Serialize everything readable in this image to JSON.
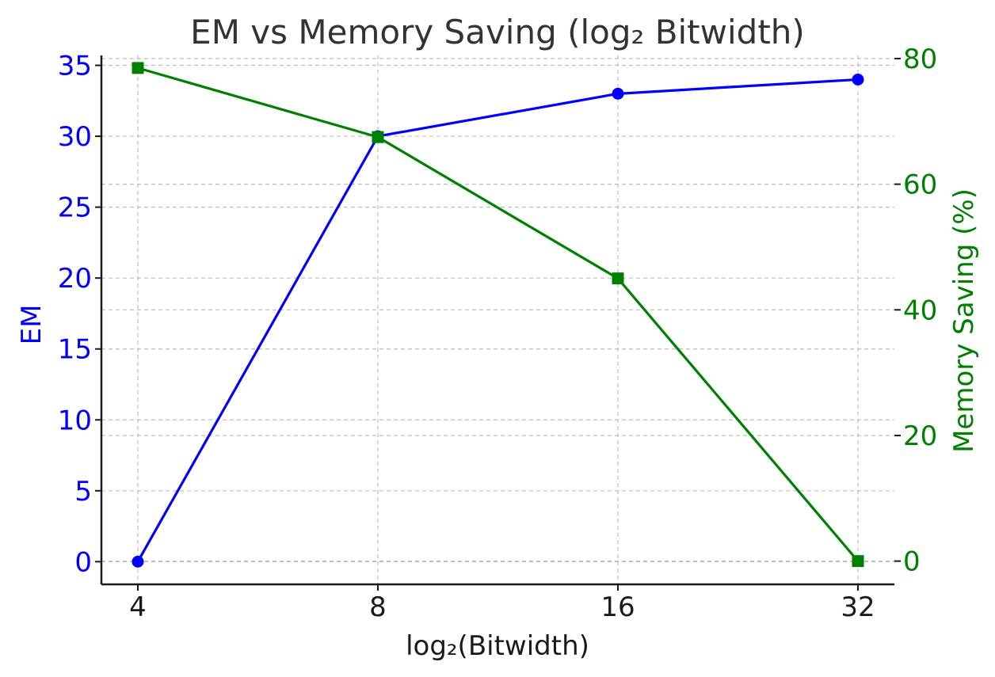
{
  "chart_data": {
    "type": "line",
    "title": "EM vs Memory Saving (log₂ Bitwidth)",
    "xlabel": "log₂(Bitwidth)",
    "categories": [
      "4",
      "8",
      "16",
      "32"
    ],
    "grid": true,
    "y_left": {
      "label": "EM",
      "range": [
        -1.6,
        35.7
      ],
      "ticks": [
        0,
        5,
        10,
        15,
        20,
        25,
        30,
        35
      ],
      "color": "#0000ff"
    },
    "y_right": {
      "label": "Memory Saving (%)",
      "range": [
        -3.7,
        80.5
      ],
      "ticks": [
        0,
        20,
        40,
        60,
        80
      ],
      "color": "#008000"
    },
    "series": [
      {
        "axis": "left",
        "marker": "circle",
        "color": "#0000ff",
        "values": [
          0,
          30,
          33,
          34
        ]
      },
      {
        "axis": "right",
        "marker": "square",
        "color": "#008000",
        "values": [
          78.5,
          67.5,
          45,
          0
        ]
      }
    ]
  }
}
